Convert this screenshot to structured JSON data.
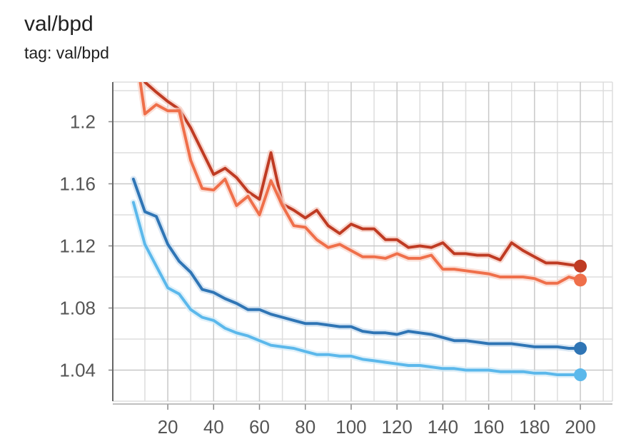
{
  "card": {
    "title": "val/bpd",
    "tag": "tag: val/bpd"
  },
  "chart_data": {
    "type": "line",
    "title": "val/bpd",
    "xlabel": "",
    "ylabel": "",
    "xlim": [
      -4,
      214
    ],
    "ylim": [
      1.02,
      1.2255
    ],
    "xticks": [
      20,
      40,
      60,
      80,
      100,
      120,
      140,
      160,
      180,
      200
    ],
    "xtick_labels": [
      "20",
      "40",
      "60",
      "80",
      "100",
      "120",
      "140",
      "160",
      "180",
      "200"
    ],
    "yticks": [
      1.04,
      1.08,
      1.12,
      1.16,
      1.2
    ],
    "ytick_labels": [
      "1.04",
      "1.08",
      "1.12",
      "1.16",
      "1.2"
    ],
    "grid": true,
    "series": [
      {
        "color": "#bf3b23",
        "smoothing_shadow": "#f5c9bd",
        "x": [
          10,
          15,
          20,
          25,
          30,
          35,
          40,
          45,
          50,
          55,
          60,
          65,
          70,
          75,
          80,
          85,
          90,
          95,
          100,
          105,
          110,
          115,
          120,
          125,
          130,
          135,
          140,
          145,
          150,
          155,
          160,
          165,
          170,
          175,
          180,
          185,
          190,
          195,
          200
        ],
        "y": [
          1.2255,
          1.219,
          1.213,
          1.208,
          1.196,
          1.181,
          1.166,
          1.17,
          1.164,
          1.155,
          1.15,
          1.18,
          1.147,
          1.143,
          1.138,
          1.143,
          1.133,
          1.128,
          1.134,
          1.131,
          1.131,
          1.124,
          1.124,
          1.119,
          1.12,
          1.119,
          1.122,
          1.115,
          1.115,
          1.114,
          1.114,
          1.111,
          1.122,
          1.117,
          1.113,
          1.109,
          1.109,
          1.108,
          1.107
        ]
      },
      {
        "color": "#ef6f4a",
        "smoothing_shadow": "#f9d3c7",
        "x": [
          8,
          10,
          15,
          20,
          25,
          30,
          35,
          40,
          45,
          50,
          55,
          60,
          65,
          70,
          75,
          80,
          85,
          90,
          95,
          100,
          105,
          110,
          115,
          120,
          125,
          130,
          135,
          140,
          145,
          150,
          155,
          160,
          165,
          170,
          175,
          180,
          185,
          190,
          195,
          200
        ],
        "y": [
          1.2255,
          1.205,
          1.211,
          1.207,
          1.207,
          1.175,
          1.157,
          1.156,
          1.163,
          1.146,
          1.152,
          1.14,
          1.162,
          1.146,
          1.133,
          1.132,
          1.124,
          1.119,
          1.121,
          1.117,
          1.113,
          1.113,
          1.112,
          1.115,
          1.112,
          1.112,
          1.114,
          1.105,
          1.105,
          1.104,
          1.103,
          1.102,
          1.1,
          1.1,
          1.1,
          1.099,
          1.096,
          1.096,
          1.1,
          1.098
        ]
      },
      {
        "color": "#2f75b5",
        "smoothing_shadow": "#c9ddef",
        "x": [
          5,
          10,
          15,
          20,
          25,
          30,
          35,
          40,
          45,
          50,
          55,
          60,
          65,
          70,
          75,
          80,
          85,
          90,
          95,
          100,
          105,
          110,
          115,
          120,
          125,
          130,
          135,
          140,
          145,
          150,
          155,
          160,
          165,
          170,
          175,
          180,
          185,
          190,
          195,
          200
        ],
        "y": [
          1.163,
          1.142,
          1.139,
          1.121,
          1.11,
          1.103,
          1.092,
          1.09,
          1.086,
          1.083,
          1.079,
          1.079,
          1.076,
          1.074,
          1.072,
          1.07,
          1.07,
          1.069,
          1.068,
          1.068,
          1.065,
          1.064,
          1.064,
          1.063,
          1.065,
          1.064,
          1.063,
          1.061,
          1.059,
          1.059,
          1.058,
          1.057,
          1.057,
          1.057,
          1.056,
          1.055,
          1.055,
          1.055,
          1.054,
          1.054
        ]
      },
      {
        "color": "#5bb8eb",
        "smoothing_shadow": "#d3ebf8",
        "x": [
          5,
          10,
          15,
          20,
          25,
          30,
          35,
          40,
          45,
          50,
          55,
          60,
          65,
          70,
          75,
          80,
          85,
          90,
          95,
          100,
          105,
          110,
          115,
          120,
          125,
          130,
          135,
          140,
          145,
          150,
          155,
          160,
          165,
          170,
          175,
          180,
          185,
          190,
          195,
          200
        ],
        "y": [
          1.148,
          1.121,
          1.107,
          1.093,
          1.089,
          1.079,
          1.074,
          1.072,
          1.067,
          1.064,
          1.062,
          1.059,
          1.056,
          1.055,
          1.054,
          1.052,
          1.05,
          1.05,
          1.049,
          1.049,
          1.047,
          1.046,
          1.045,
          1.044,
          1.043,
          1.043,
          1.042,
          1.041,
          1.041,
          1.04,
          1.04,
          1.04,
          1.039,
          1.039,
          1.039,
          1.038,
          1.038,
          1.037,
          1.037,
          1.037
        ]
      }
    ]
  }
}
